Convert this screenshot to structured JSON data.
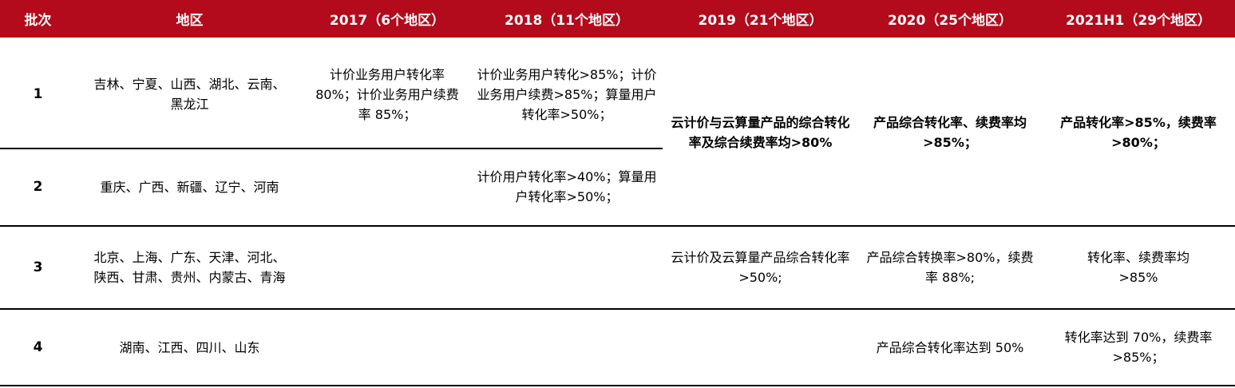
{
  "headers": [
    "批次",
    "地区",
    "2017（6个地区）",
    "2018（11个地区）",
    "2019（21个地区）",
    "2020（25个地区）",
    "2021H1（29个地区）"
  ],
  "rows": [
    {
      "batch": "1",
      "region": "吉林、宁夏、山西、湖北、云南、黑龙江",
      "y2017": "计价业务用户转化率 80%；计价业务用户续费率 85%；",
      "y2018": "计价业务用户转化>85%；计价业务用户续费>85%；算量用户转化率>50%；"
    },
    {
      "batch": "2",
      "region": "重庆、广西、新疆、辽宁、河南",
      "y2018": "计价用户转化率>40%；算量用户转化率>50%；"
    },
    {
      "batch": "3",
      "region": "北京、上海、广东、天津、河北、陕西、甘肃、贵州、内蒙古、青海",
      "y2019": "云计价及云算量产品综合转化率>50%;",
      "y2020": "产品综合转换率>80%，续费率 88%;",
      "y2021": "转化率、续费率均>85%"
    },
    {
      "batch": "4",
      "region": "湖南、江西、四川、山东",
      "y2020": "产品综合转化率达到 50%",
      "y2021": "转化率达到 70%，续费率>85%；"
    }
  ],
  "merged_1_2": {
    "y2019": "云计价与云算量产品的综合转化率及综合续费率均>80%",
    "y2020": "产品综合转化率、续费率均>85%；",
    "y2021": "产品转化率>85%，续费率>80%；"
  },
  "colors": {
    "header_bg": "#b30a1c",
    "header_text": "#ffffff",
    "rule": "#000000"
  }
}
